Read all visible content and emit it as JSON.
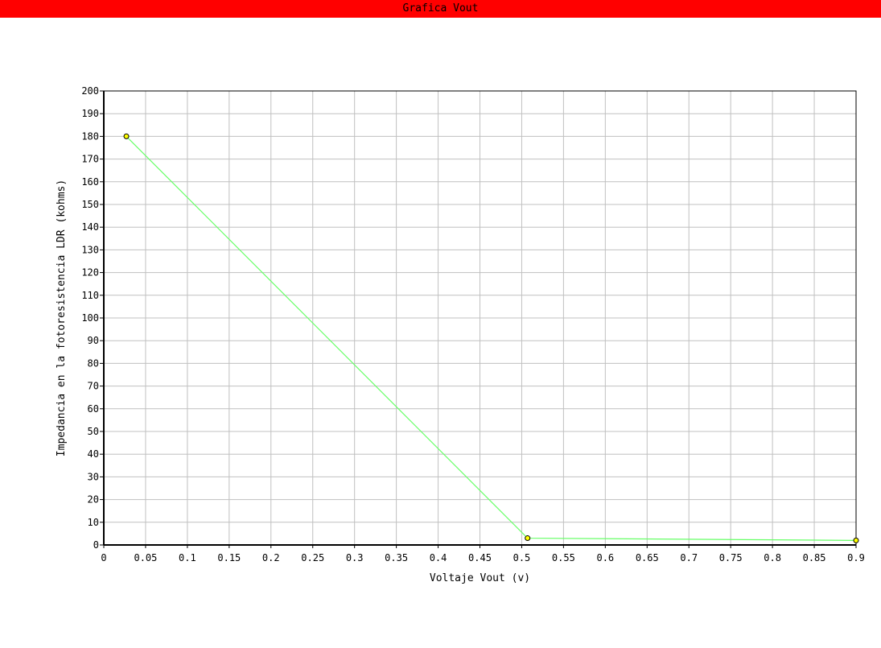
{
  "window": {
    "title": "Grafica Vout"
  },
  "colors": {
    "title_bar": "#ff0000",
    "line": "#66ff66",
    "marker_fill": "#ffff00",
    "marker_stroke": "#000000",
    "grid": "#c0c0c0",
    "axis": "#000000"
  },
  "chart_data": {
    "type": "line",
    "title": "Grafica Vout",
    "xlabel": "Voltaje Vout (v)",
    "ylabel": "Impedancia en la fotoresistencia LDR (kohms)",
    "xlim": [
      0,
      0.9
    ],
    "ylim": [
      0,
      200
    ],
    "grid": true,
    "x_ticks": [
      "0",
      "0.05",
      "0.1",
      "0.15",
      "0.2",
      "0.25",
      "0.3",
      "0.35",
      "0.4",
      "0.45",
      "0.5",
      "0.55",
      "0.6",
      "0.65",
      "0.7",
      "0.75",
      "0.8",
      "0.85",
      "0.9"
    ],
    "y_ticks": [
      "0",
      "10",
      "20",
      "30",
      "40",
      "50",
      "60",
      "70",
      "80",
      "90",
      "100",
      "110",
      "120",
      "130",
      "140",
      "150",
      "160",
      "170",
      "180",
      "190",
      "200"
    ],
    "series": [
      {
        "x": [
          0.027,
          0.507,
          0.9
        ],
        "y": [
          180,
          3,
          2
        ]
      }
    ]
  }
}
